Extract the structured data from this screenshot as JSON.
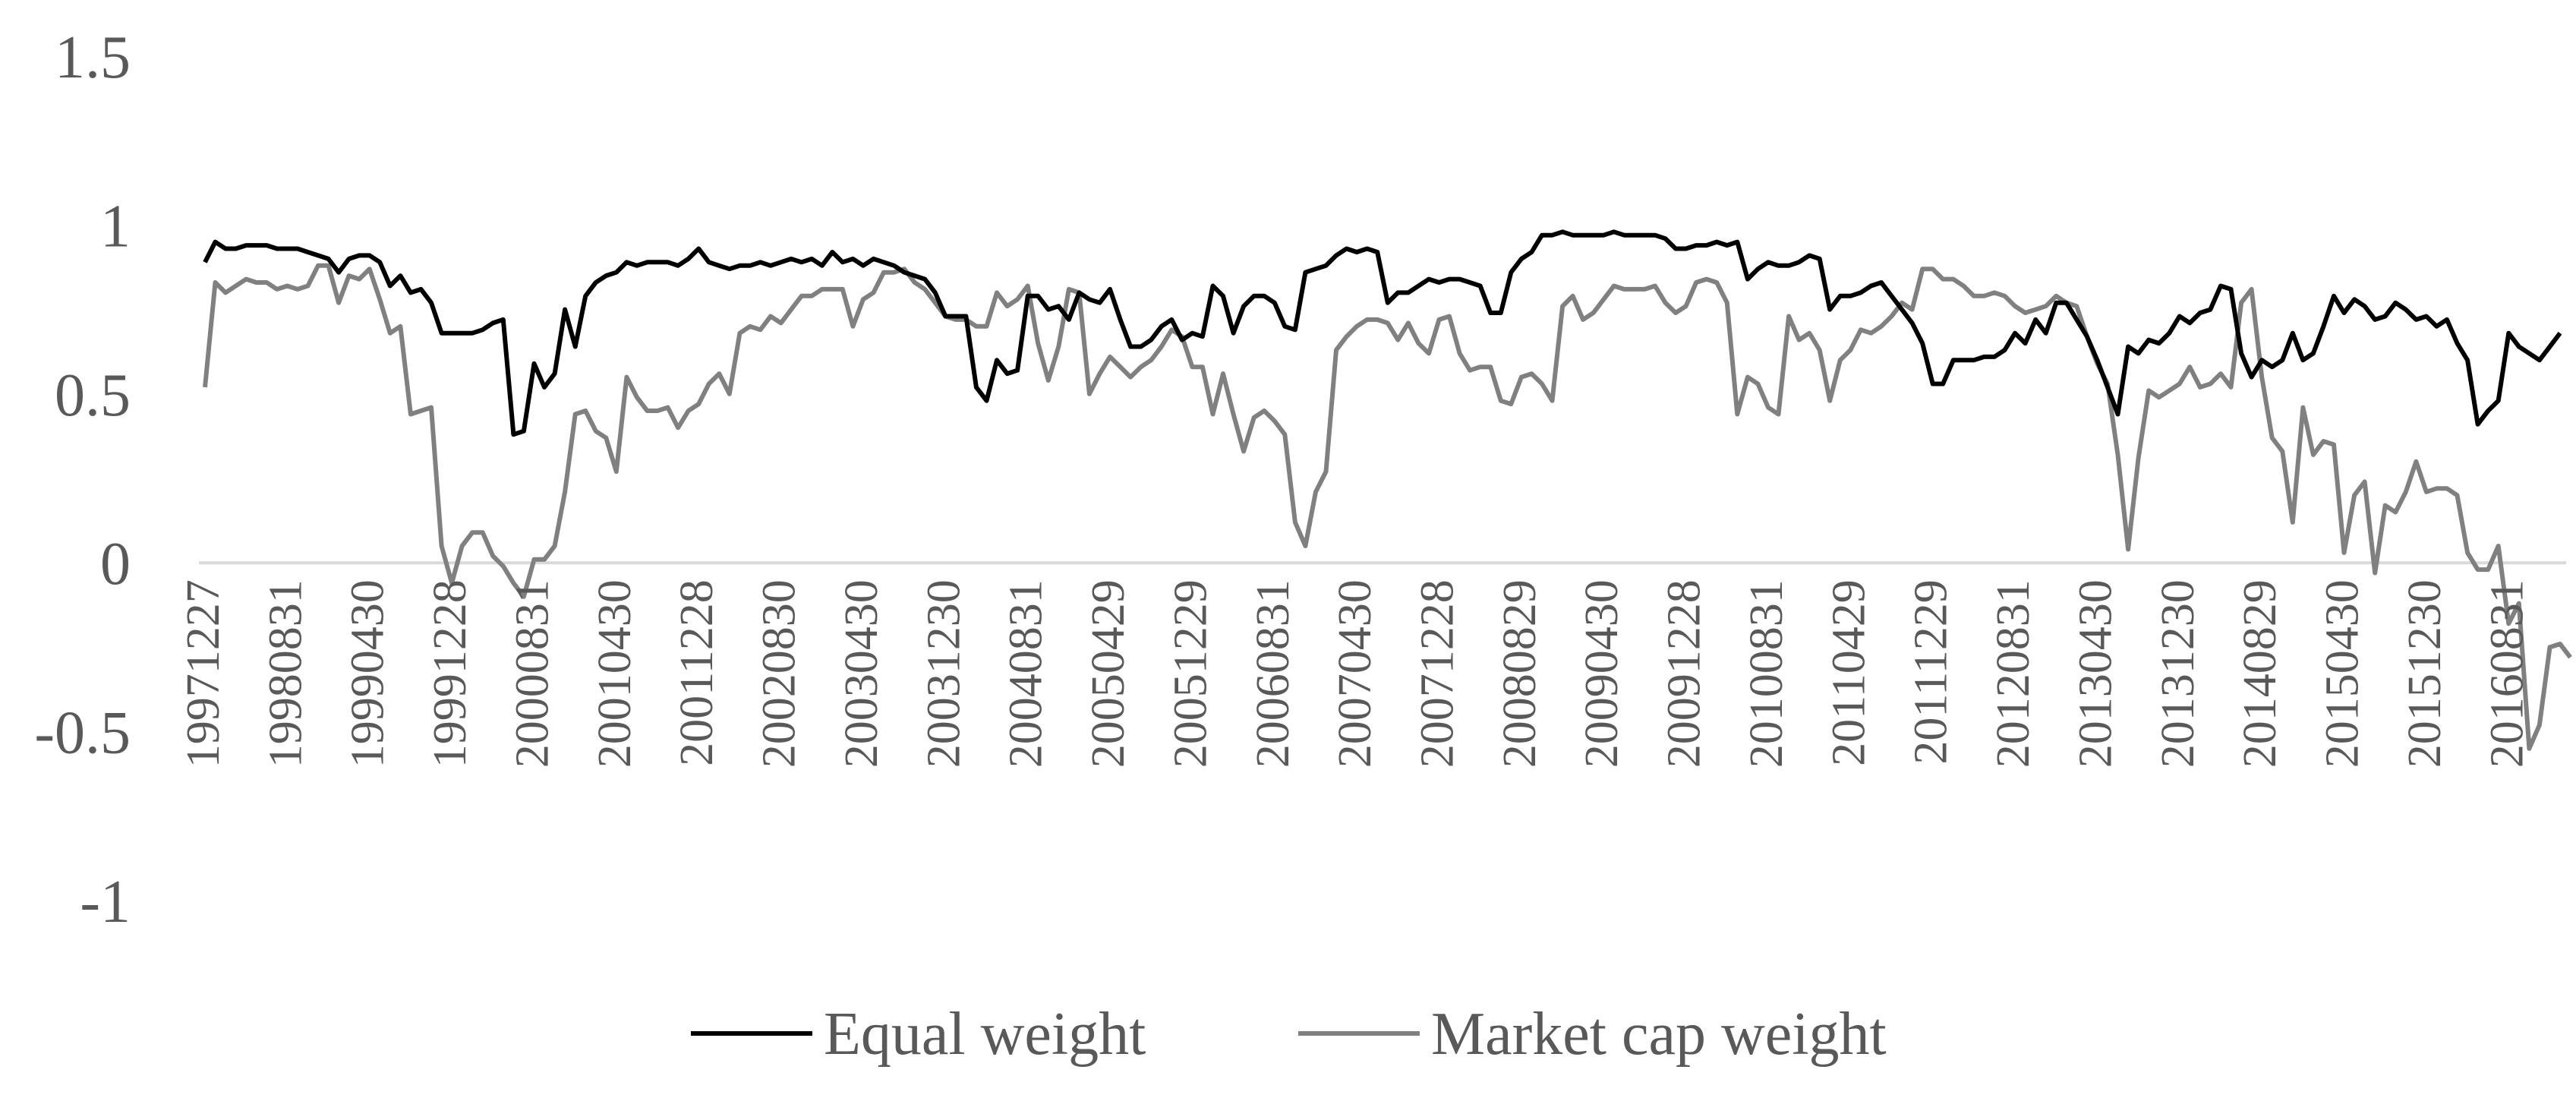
{
  "chart_data": {
    "type": "line",
    "title": "",
    "xlabel": "",
    "ylabel": "",
    "ylim": [
      -1,
      1.5
    ],
    "yticks": [
      "1.5",
      "1",
      "0.5",
      "0",
      "-0.5",
      "-1"
    ],
    "grid": false,
    "zero_line": true,
    "legend_position": "bottom",
    "x_tick_labels": [
      "19971227",
      "19980831",
      "19990430",
      "19991228",
      "20000831",
      "20010430",
      "20011228",
      "20020830",
      "20030430",
      "20031230",
      "20040831",
      "20050429",
      "20051229",
      "20060831",
      "20070430",
      "20071228",
      "20080829",
      "20090430",
      "20091228",
      "20100831",
      "20110429",
      "20111229",
      "20120831",
      "20130430",
      "20131230",
      "20140829",
      "20150430",
      "20151230",
      "20160831"
    ],
    "x_tick_every": 8,
    "series": [
      {
        "name": "Equal weight",
        "color": "#000000",
        "values": [
          0.89,
          0.95,
          0.93,
          0.93,
          0.94,
          0.94,
          0.94,
          0.93,
          0.93,
          0.93,
          0.92,
          0.91,
          0.9,
          0.86,
          0.9,
          0.91,
          0.91,
          0.89,
          0.82,
          0.85,
          0.8,
          0.81,
          0.77,
          0.68,
          0.68,
          0.68,
          0.68,
          0.69,
          0.71,
          0.72,
          0.38,
          0.39,
          0.59,
          0.52,
          0.56,
          0.75,
          0.64,
          0.79,
          0.83,
          0.85,
          0.86,
          0.89,
          0.88,
          0.89,
          0.89,
          0.89,
          0.88,
          0.9,
          0.93,
          0.89,
          0.88,
          0.87,
          0.88,
          0.88,
          0.89,
          0.88,
          0.89,
          0.9,
          0.89,
          0.9,
          0.88,
          0.92,
          0.89,
          0.9,
          0.88,
          0.9,
          0.89,
          0.88,
          0.86,
          0.85,
          0.84,
          0.8,
          0.73,
          0.73,
          0.73,
          0.52,
          0.48,
          0.6,
          0.56,
          0.57,
          0.79,
          0.79,
          0.75,
          0.76,
          0.72,
          0.8,
          0.78,
          0.77,
          0.81,
          0.72,
          0.64,
          0.64,
          0.66,
          0.7,
          0.72,
          0.66,
          0.68,
          0.67,
          0.82,
          0.79,
          0.68,
          0.76,
          0.79,
          0.79,
          0.77,
          0.7,
          0.69,
          0.86,
          0.87,
          0.88,
          0.91,
          0.93,
          0.92,
          0.93,
          0.92,
          0.77,
          0.8,
          0.8,
          0.82,
          0.84,
          0.83,
          0.84,
          0.84,
          0.83,
          0.82,
          0.74,
          0.74,
          0.86,
          0.9,
          0.92,
          0.97,
          0.97,
          0.98,
          0.97,
          0.97,
          0.97,
          0.97,
          0.98,
          0.97,
          0.97,
          0.97,
          0.97,
          0.96,
          0.93,
          0.93,
          0.94,
          0.94,
          0.95,
          0.94,
          0.95,
          0.84,
          0.87,
          0.89,
          0.88,
          0.88,
          0.89,
          0.91,
          0.9,
          0.75,
          0.79,
          0.79,
          0.8,
          0.82,
          0.83,
          0.79,
          0.75,
          0.71,
          0.65,
          0.53,
          0.53,
          0.6,
          0.6,
          0.6,
          0.61,
          0.61,
          0.63,
          0.68,
          0.65,
          0.72,
          0.68,
          0.77,
          0.77,
          0.72,
          0.67,
          0.6,
          0.52,
          0.44,
          0.64,
          0.62,
          0.66,
          0.65,
          0.68,
          0.73,
          0.71,
          0.74,
          0.75,
          0.82,
          0.81,
          0.62,
          0.55,
          0.6,
          0.58,
          0.6,
          0.68,
          0.6,
          0.62,
          0.7,
          0.79,
          0.74,
          0.78,
          0.76,
          0.72,
          0.73,
          0.77,
          0.75,
          0.72,
          0.73,
          0.7,
          0.72,
          0.65,
          0.6,
          0.41,
          0.45,
          0.48,
          0.68,
          0.64,
          0.62,
          0.6,
          0.64,
          0.68
        ]
      },
      {
        "name": "Market cap weight",
        "color": "#808080",
        "values": [
          0.52,
          0.83,
          0.8,
          0.82,
          0.84,
          0.83,
          0.83,
          0.81,
          0.82,
          0.81,
          0.82,
          0.88,
          0.88,
          0.77,
          0.85,
          0.84,
          0.87,
          0.78,
          0.68,
          0.7,
          0.44,
          0.45,
          0.46,
          0.05,
          -0.06,
          0.05,
          0.09,
          0.09,
          0.02,
          -0.01,
          -0.06,
          -0.1,
          0.01,
          0.01,
          0.05,
          0.21,
          0.44,
          0.45,
          0.39,
          0.37,
          0.27,
          0.55,
          0.49,
          0.45,
          0.45,
          0.46,
          0.4,
          0.45,
          0.47,
          0.53,
          0.56,
          0.5,
          0.68,
          0.7,
          0.69,
          0.73,
          0.71,
          0.75,
          0.79,
          0.79,
          0.81,
          0.81,
          0.81,
          0.7,
          0.78,
          0.8,
          0.86,
          0.86,
          0.87,
          0.83,
          0.81,
          0.77,
          0.73,
          0.72,
          0.72,
          0.7,
          0.7,
          0.8,
          0.76,
          0.78,
          0.82,
          0.65,
          0.54,
          0.64,
          0.81,
          0.8,
          0.5,
          0.56,
          0.61,
          0.58,
          0.55,
          0.58,
          0.6,
          0.64,
          0.69,
          0.67,
          0.58,
          0.58,
          0.44,
          0.56,
          0.44,
          0.33,
          0.43,
          0.45,
          0.42,
          0.38,
          0.12,
          0.05,
          0.21,
          0.27,
          0.63,
          0.67,
          0.7,
          0.72,
          0.72,
          0.71,
          0.66,
          0.71,
          0.65,
          0.62,
          0.72,
          0.73,
          0.62,
          0.57,
          0.58,
          0.58,
          0.48,
          0.47,
          0.55,
          0.56,
          0.53,
          0.48,
          0.76,
          0.79,
          0.72,
          0.74,
          0.78,
          0.82,
          0.81,
          0.81,
          0.81,
          0.82,
          0.77,
          0.74,
          0.76,
          0.83,
          0.84,
          0.83,
          0.77,
          0.44,
          0.55,
          0.53,
          0.46,
          0.44,
          0.73,
          0.66,
          0.68,
          0.63,
          0.48,
          0.6,
          0.63,
          0.69,
          0.68,
          0.7,
          0.73,
          0.77,
          0.75,
          0.87,
          0.87,
          0.84,
          0.84,
          0.82,
          0.79,
          0.79,
          0.8,
          0.79,
          0.76,
          0.74,
          0.75,
          0.76,
          0.79,
          0.77,
          0.76,
          0.67,
          0.59,
          0.53,
          0.32,
          0.04,
          0.31,
          0.51,
          0.49,
          0.51,
          0.53,
          0.58,
          0.52,
          0.53,
          0.56,
          0.52,
          0.77,
          0.81,
          0.55,
          0.37,
          0.33,
          0.12,
          0.46,
          0.32,
          0.36,
          0.35,
          0.03,
          0.2,
          0.24,
          -0.03,
          0.17,
          0.15,
          0.21,
          0.3,
          0.21,
          0.22,
          0.22,
          0.2,
          0.03,
          -0.02,
          -0.02,
          0.05,
          -0.18,
          -0.12,
          -0.55,
          -0.48,
          -0.25,
          -0.24,
          -0.28
        ]
      }
    ]
  }
}
